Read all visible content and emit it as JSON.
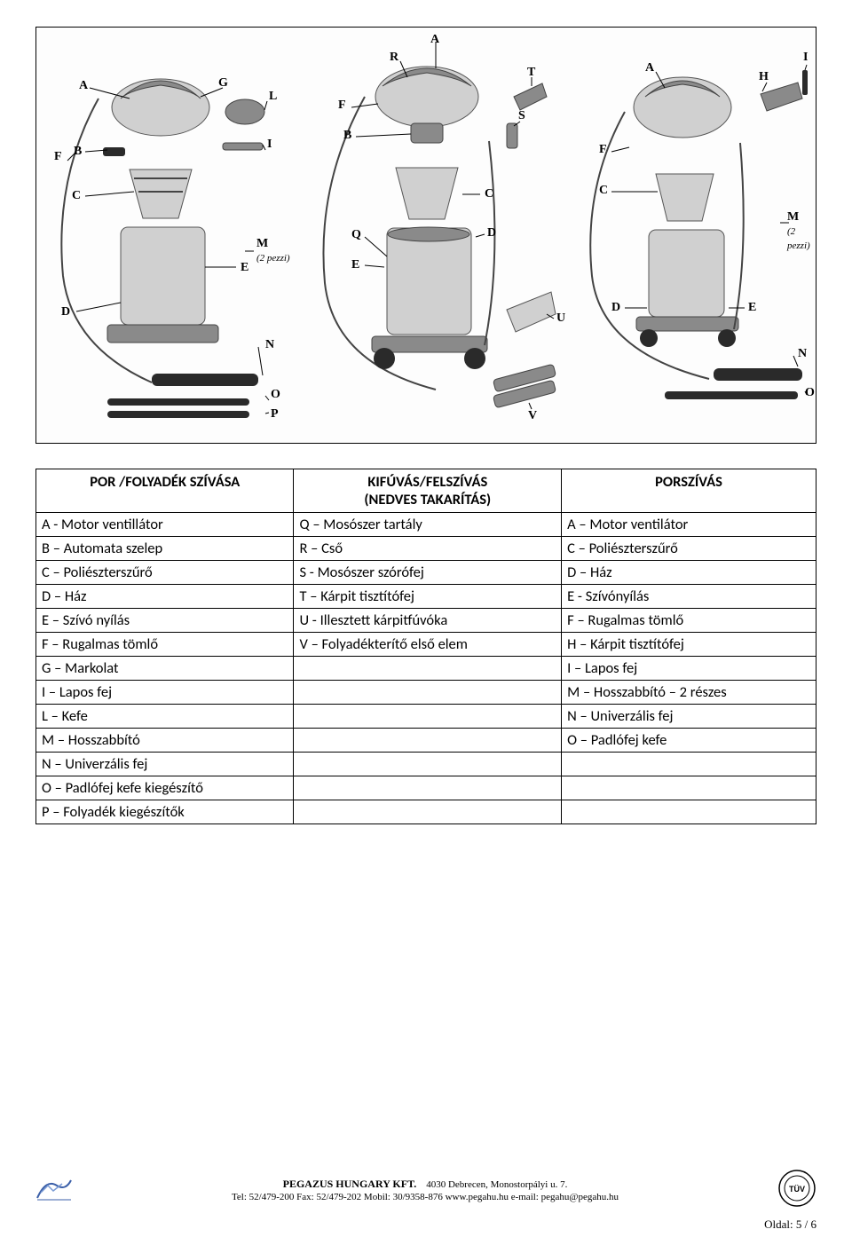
{
  "diagram": {
    "figures": [
      {
        "labels": [
          "A",
          "B",
          "C",
          "D",
          "E",
          "F",
          "G",
          "I",
          "L",
          "N",
          "O",
          "P"
        ],
        "note_labels": [
          {
            "letter": "M",
            "note": "(2 pezzi)"
          }
        ]
      },
      {
        "labels": [
          "A",
          "B",
          "C",
          "D",
          "E",
          "F",
          "Q",
          "R",
          "S",
          "T",
          "U",
          "V"
        ],
        "note_labels": []
      },
      {
        "labels": [
          "A",
          "C",
          "D",
          "E",
          "F",
          "H",
          "I",
          "N",
          "O"
        ],
        "note_labels": [
          {
            "letter": "M",
            "note": "(2 pezzi)"
          }
        ]
      }
    ]
  },
  "table": {
    "headers": {
      "col1": "POR /FOLYADÉK SZÍVÁSA",
      "col2_line1": "KIFÚVÁS/FELSZÍVÁS",
      "col2_line2": "(NEDVES TAKARÍTÁS)",
      "col3": "PORSZÍVÁS"
    },
    "rows": [
      {
        "c1": "A - Motor ventillátor",
        "c2": "Q – Mosószer tartály",
        "c3": "A – Motor ventilátor"
      },
      {
        "c1": "B – Automata szelep",
        "c2": "R – Cső",
        "c3": "C – Poliészterszűrő"
      },
      {
        "c1": "C – Poliészterszűrő",
        "c2": "S - Mosószer szórófej",
        "c3": "D – Ház"
      },
      {
        "c1": "D – Ház",
        "c2": "T – Kárpit tisztítófej",
        "c3": "E - Szívónyílás"
      },
      {
        "c1": "E – Szívó nyílás",
        "c2": "U - Illesztett kárpitfúvóka",
        "c3": "F – Rugalmas tömlő"
      },
      {
        "c1": "F – Rugalmas tömlő",
        "c2": "V – Folyadékterítő első elem",
        "c3": "H – Kárpit tisztítófej"
      },
      {
        "c1": "G – Markolat",
        "c2": "",
        "c3": "I – Lapos fej"
      },
      {
        "c1": "I – Lapos fej",
        "c2": "",
        "c3": "M – Hosszabbító – 2 részes"
      },
      {
        "c1": "L – Kefe",
        "c2": "",
        "c3": "N – Univerzális fej"
      },
      {
        "c1": "M – Hosszabbító",
        "c2": "",
        "c3": "O – Padlófej kefe"
      },
      {
        "c1": "N – Univerzális fej",
        "c2": "",
        "c3": ""
      },
      {
        "c1": "O – Padlófej kefe kiegészítő",
        "c2": "",
        "c3": ""
      },
      {
        "c1": "P – Folyadék kiegészítők",
        "c2": "",
        "c3": ""
      }
    ]
  },
  "footer": {
    "company": "PEGAZUS HUNGARY KFT.",
    "address": "4030 Debrecen, Monostorpályi u. 7.",
    "contact": "Tel: 52/479-200 Fax: 52/479-202 Mobil: 30/9358-876 www.pegahu.hu    e-mail: pegahu@pegahu.hu",
    "page": "Oldal: 5 / 6"
  }
}
